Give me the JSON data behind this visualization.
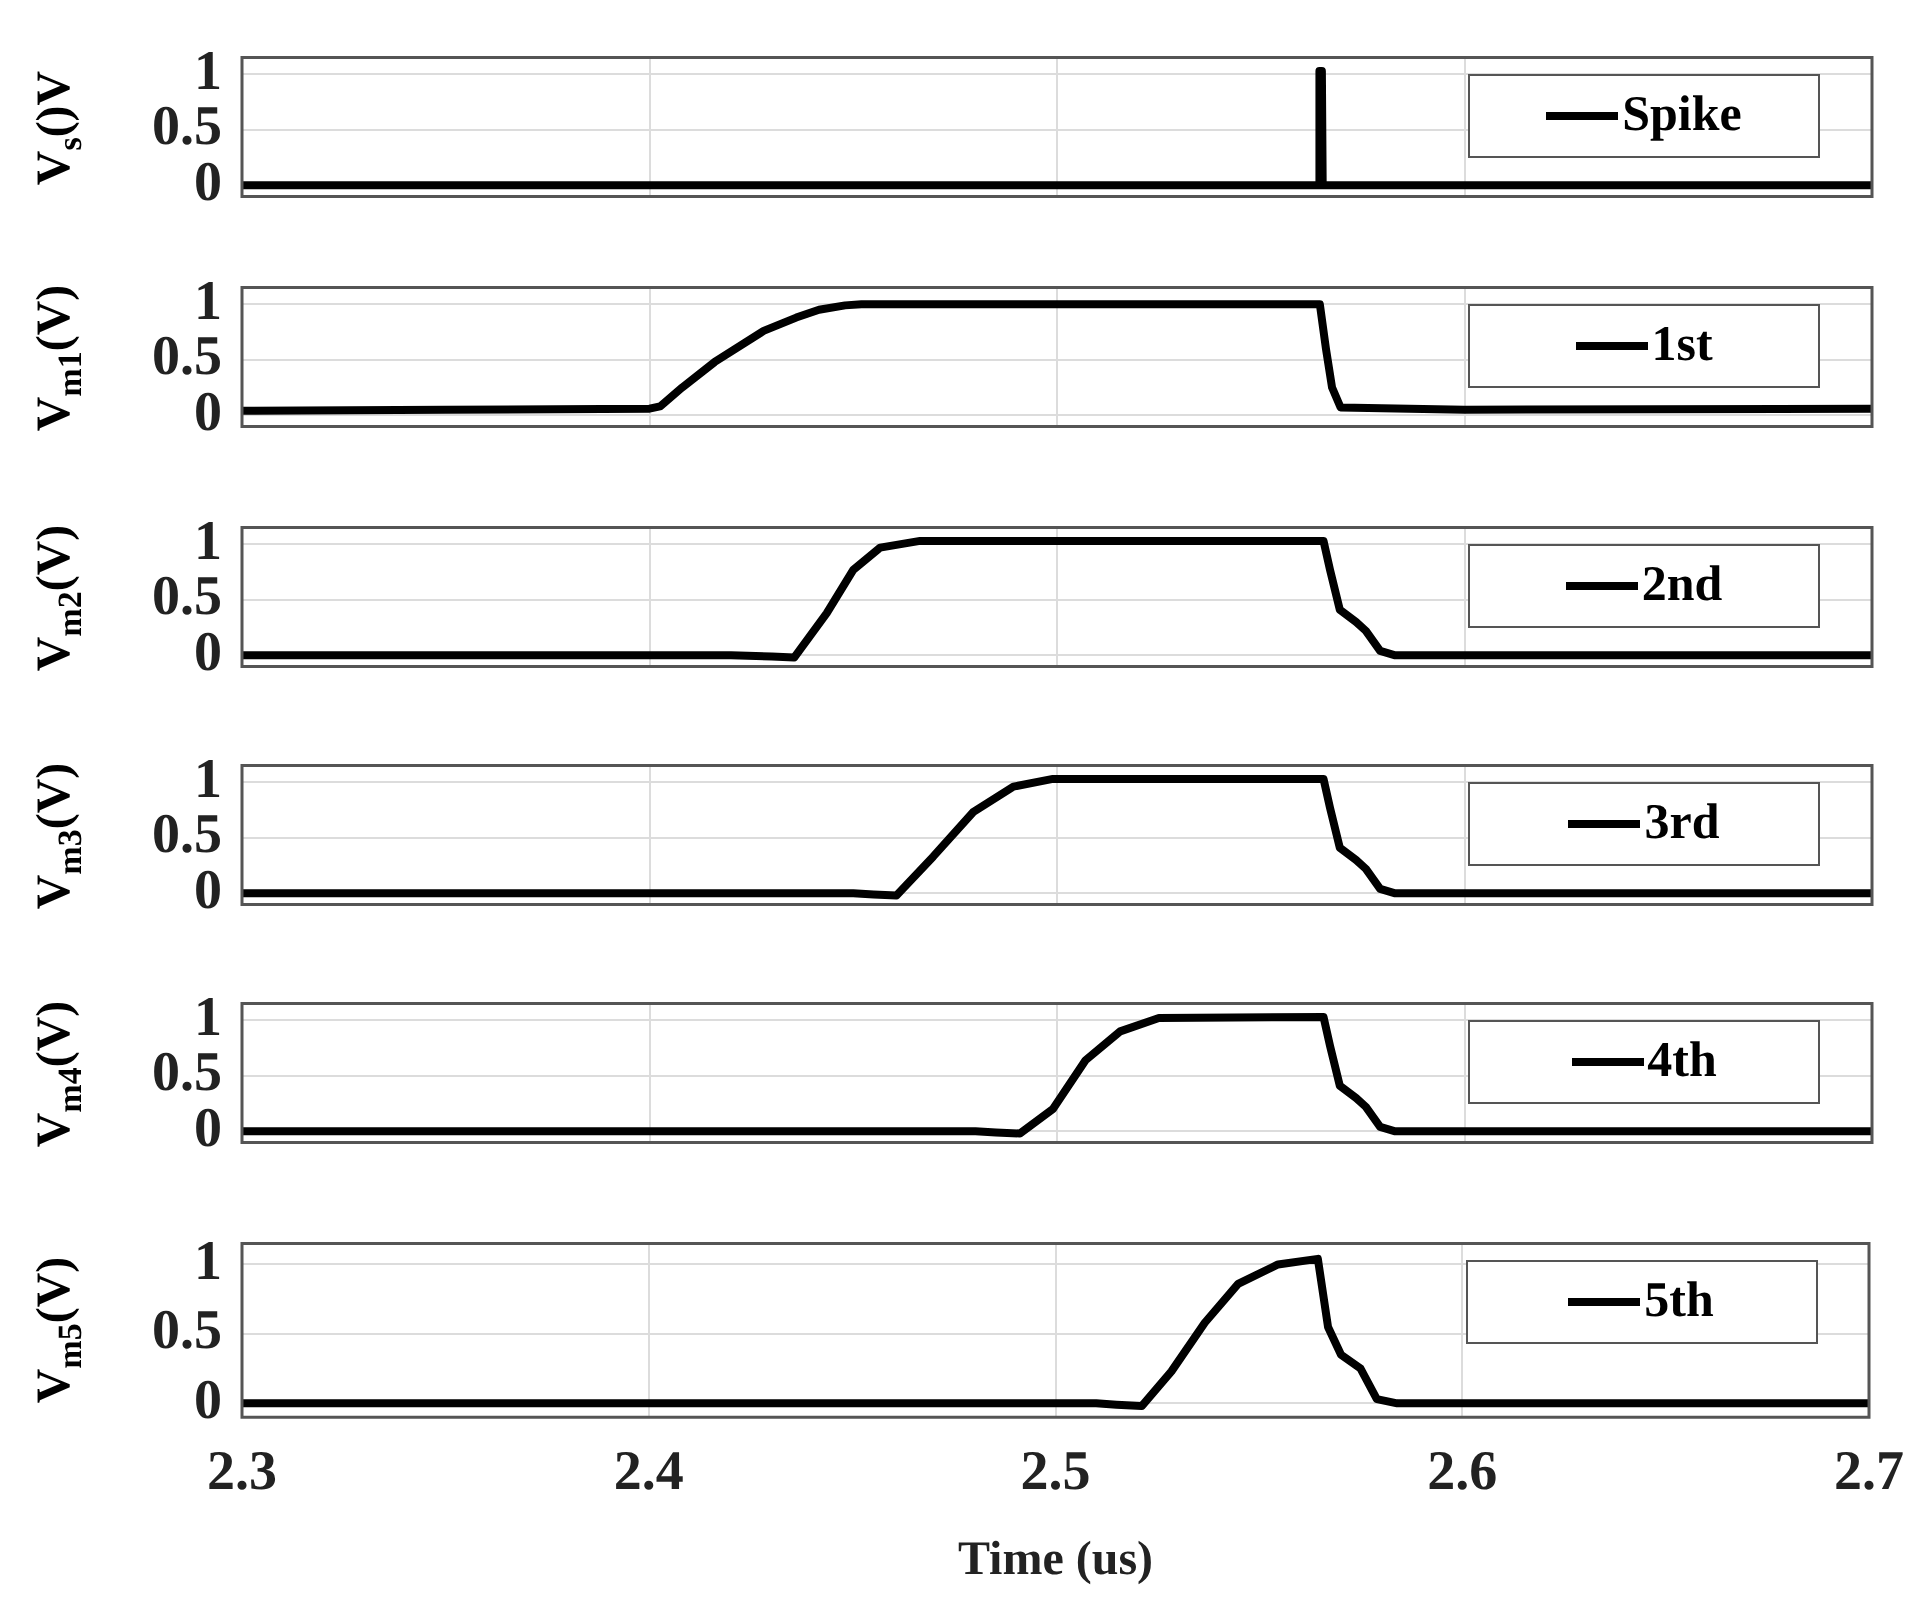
{
  "chart_data": [
    {
      "type": "line",
      "ylabel": "V$_{s}$()V",
      "xlim": [
        2.3,
        2.7
      ],
      "xticks": [
        2.3,
        2.4,
        2.5,
        2.6,
        2.7
      ],
      "ylim": [
        -0.1,
        1.15
      ],
      "yticks": [
        0,
        0.5,
        1
      ],
      "grid": true,
      "legend": "top right",
      "tick_labels": "y",
      "series": [
        {
          "name": "Spike",
          "color": "#000000",
          "x": [
            2.3,
            2.5642,
            2.5644,
            2.565,
            2.5652,
            2.7
          ],
          "values": [
            0,
            0,
            1.03,
            1.03,
            0,
            0
          ]
        }
      ]
    },
    {
      "type": "line",
      "ylabel": "V$_{m1}$(V)",
      "xlim": [
        2.3,
        2.7
      ],
      "xticks": [
        2.3,
        2.4,
        2.5,
        2.6,
        2.7
      ],
      "ylim": [
        -0.1,
        1.15
      ],
      "yticks": [
        0,
        0.5,
        1
      ],
      "grid": true,
      "legend": "top right",
      "tick_labels": "y",
      "series": [
        {
          "name": "1st",
          "color": "#000000",
          "x": [
            2.3,
            2.35,
            2.4,
            2.4026,
            2.408,
            2.416,
            2.428,
            2.436,
            2.4416,
            2.448,
            2.452,
            2.46,
            2.5,
            2.5645,
            2.566,
            2.5675,
            2.5696,
            2.6,
            2.7
          ],
          "values": [
            0.04,
            0.05,
            0.06,
            0.08,
            0.25,
            0.48,
            0.76,
            0.88,
            0.95,
            0.99,
            1.0,
            1.0,
            1.0,
            1.0,
            0.6,
            0.25,
            0.07,
            0.05,
            0.06
          ]
        }
      ]
    },
    {
      "type": "line",
      "ylabel": "V$_{m2}$(V)",
      "xlim": [
        2.3,
        2.7
      ],
      "xticks": [
        2.3,
        2.4,
        2.5,
        2.6,
        2.7
      ],
      "ylim": [
        -0.1,
        1.15
      ],
      "yticks": [
        0,
        0.5,
        1
      ],
      "grid": true,
      "legend": "top right",
      "tick_labels": "y",
      "series": [
        {
          "name": "2nd",
          "color": "#000000",
          "x": [
            2.3,
            2.42,
            2.43,
            2.4355,
            2.4435,
            2.45,
            2.4566,
            2.4664,
            2.5654,
            2.567,
            2.5694,
            2.5734,
            2.5758,
            2.5793,
            2.583,
            2.7
          ],
          "values": [
            0,
            0,
            -0.01,
            -0.02,
            0.38,
            0.77,
            0.97,
            1.03,
            1.03,
            0.77,
            0.41,
            0.3,
            0.22,
            0.04,
            0,
            0
          ]
        }
      ]
    },
    {
      "type": "line",
      "ylabel": "V$_{m3}$(V)",
      "xlim": [
        2.3,
        2.7
      ],
      "xticks": [
        2.3,
        2.4,
        2.5,
        2.6,
        2.7
      ],
      "ylim": [
        -0.1,
        1.15
      ],
      "yticks": [
        0,
        0.5,
        1
      ],
      "grid": true,
      "legend": "top right",
      "tick_labels": "y",
      "series": [
        {
          "name": "3rd",
          "color": "#000000",
          "x": [
            2.3,
            2.45,
            2.455,
            2.4606,
            2.4696,
            2.4794,
            2.4893,
            2.499,
            2.5654,
            2.567,
            2.5694,
            2.5734,
            2.5758,
            2.5793,
            2.583,
            2.7
          ],
          "values": [
            0,
            0,
            -0.01,
            -0.02,
            0.33,
            0.73,
            0.96,
            1.03,
            1.03,
            0.77,
            0.41,
            0.3,
            0.22,
            0.04,
            0,
            0
          ]
        }
      ]
    },
    {
      "type": "line",
      "ylabel": "V$_{m4}$(V)",
      "xlim": [
        2.3,
        2.7
      ],
      "xticks": [
        2.3,
        2.4,
        2.5,
        2.6,
        2.7
      ],
      "ylim": [
        -0.1,
        1.15
      ],
      "yticks": [
        0,
        0.5,
        1
      ],
      "grid": true,
      "legend": "top right",
      "tick_labels": "y",
      "series": [
        {
          "name": "4th",
          "color": "#000000",
          "x": [
            2.3,
            2.48,
            2.485,
            2.4909,
            2.499,
            2.507,
            2.5155,
            2.525,
            2.5654,
            2.567,
            2.5694,
            2.5734,
            2.5758,
            2.5793,
            2.583,
            2.7
          ],
          "values": [
            0,
            0,
            -0.01,
            -0.02,
            0.2,
            0.64,
            0.9,
            1.02,
            1.03,
            0.77,
            0.41,
            0.3,
            0.22,
            0.04,
            0,
            0
          ]
        }
      ]
    },
    {
      "type": "line",
      "ylabel": "V$_{m5}$(V)",
      "xlabel": "Time (us)",
      "xlim": [
        2.3,
        2.7
      ],
      "xticks": [
        2.3,
        2.4,
        2.5,
        2.6,
        2.7
      ],
      "ylim": [
        -0.1,
        1.15
      ],
      "yticks": [
        0,
        0.5,
        1
      ],
      "grid": true,
      "legend": "top right",
      "series": [
        {
          "name": "5th",
          "color": "#000000",
          "x": [
            2.3,
            2.51,
            2.515,
            2.5212,
            2.5285,
            2.5367,
            2.5449,
            2.5547,
            2.5645,
            2.567,
            2.5702,
            2.575,
            2.579,
            2.584,
            2.7
          ],
          "values": [
            0,
            0,
            -0.01,
            -0.02,
            0.23,
            0.58,
            0.86,
            1.0,
            1.04,
            0.55,
            0.35,
            0.25,
            0.03,
            0,
            0
          ]
        }
      ]
    }
  ]
}
